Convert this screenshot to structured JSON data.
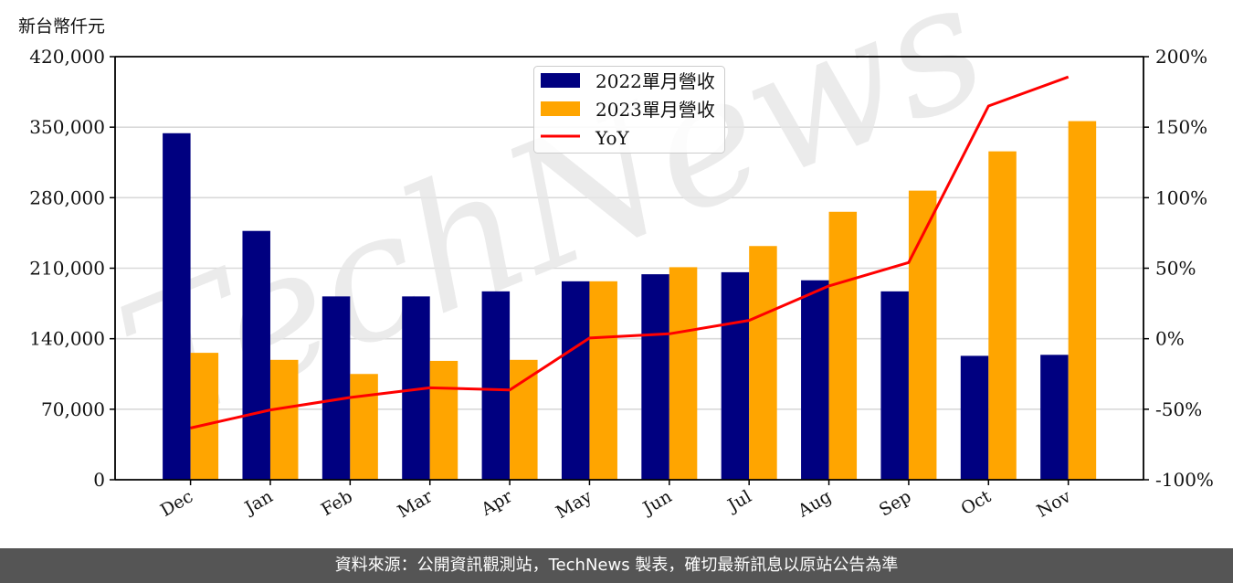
{
  "header": {
    "unit_label": "新台幣仟元"
  },
  "footer": {
    "text": "資料來源：公開資訊觀測站，TechNews 製表，確切最新訊息以原站公告為準"
  },
  "watermark": {
    "text": "TechNews"
  },
  "colors": {
    "series_2022": "#000080",
    "series_2023": "#FFA500",
    "yoy": "#FF0000",
    "grid": "#d9d9d9",
    "footer_bg": "#555555"
  },
  "chart_data": {
    "type": "bar",
    "title": "",
    "xlabel": "",
    "ylabel": "新台幣仟元",
    "y2label": "",
    "categories": [
      "Dec",
      "Jan",
      "Feb",
      "Mar",
      "Apr",
      "May",
      "Jun",
      "Jul",
      "Aug",
      "Sep",
      "Oct",
      "Nov"
    ],
    "series": [
      {
        "name": "2022單月營收",
        "type": "bar",
        "axis": "left",
        "values": [
          344000,
          247000,
          182000,
          182000,
          187000,
          197000,
          204000,
          206000,
          198000,
          187000,
          123000,
          124000
        ]
      },
      {
        "name": "2023單月營收",
        "type": "bar",
        "axis": "left",
        "values": [
          126000,
          119000,
          105000,
          118000,
          119000,
          197000,
          211000,
          232000,
          266000,
          287000,
          326000,
          356000
        ]
      },
      {
        "name": "YoY",
        "type": "line",
        "axis": "right",
        "unit": "%",
        "values": [
          -63.3,
          -50.5,
          -41.7,
          -34.8,
          -36.3,
          0.5,
          3.5,
          13.0,
          37.4,
          54.0,
          165.0,
          185.6
        ]
      }
    ],
    "ylim": [
      0,
      420000
    ],
    "yticks": [
      0,
      70000,
      140000,
      210000,
      280000,
      350000,
      420000
    ],
    "ytick_labels": [
      "0",
      "70,000",
      "140,000",
      "210,000",
      "280,000",
      "350,000",
      "420,000"
    ],
    "y2lim": [
      -100,
      200
    ],
    "y2ticks": [
      -100,
      -50,
      0,
      50,
      100,
      150,
      200
    ],
    "y2tick_labels": [
      "-100%",
      "-50%",
      "0%",
      "50%",
      "100%",
      "150%",
      "200%"
    ],
    "grid": true,
    "legend_position": "upper center"
  }
}
